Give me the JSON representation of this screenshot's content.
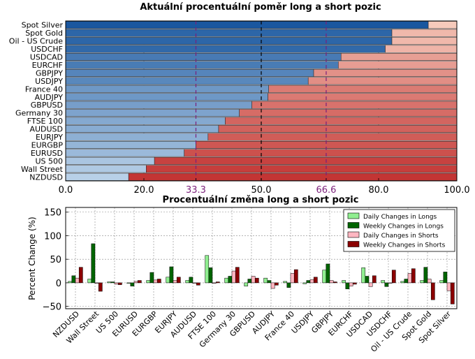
{
  "chart_data": [
    {
      "type": "bar",
      "orientation": "horizontal",
      "stacked": true,
      "title": "Aktuální procentuální poměr long a short pozic",
      "categories": [
        "Spot Silver",
        "Spot Gold",
        "Oil - US Crude",
        "USDCHF",
        "USDCAD",
        "EURCHF",
        "GBPJPY",
        "USDJPY",
        "France 40",
        "AUDJPY",
        "GBPUSD",
        "Germany 30",
        "FTSE 100",
        "AUDUSD",
        "EURJPY",
        "EURGBP",
        "EURUSD",
        "US 500",
        "Wall Street",
        "NZDUSD"
      ],
      "series": [
        {
          "values": [
            92.7,
            83.4,
            83.4,
            81.7,
            70.4,
            69.7,
            63.4,
            62.0,
            51.9,
            51.7,
            47.6,
            44.4,
            40.8,
            39.1,
            36.4,
            33.3,
            30.3,
            22.7,
            20.6,
            16.1
          ]
        },
        {
          "values": [
            7.3,
            16.6,
            16.6,
            18.3,
            29.6,
            30.3,
            36.6,
            38.0,
            48.1,
            48.3,
            52.4,
            55.6,
            59.2,
            60.9,
            63.6,
            66.7,
            69.7,
            77.3,
            79.4,
            83.9
          ]
        }
      ],
      "xlim": [
        0,
        100
      ],
      "xticks": [
        "0.0",
        "20.0",
        "33.3",
        "50.0",
        "66.6",
        "80.0",
        "100.0"
      ],
      "reference_lines": [
        33.3,
        50.0,
        66.6
      ],
      "grid": true,
      "colors": {
        "long_light": "#d9e9f7",
        "long_dark": "#0b4c98",
        "short_light": "#fbd8c8",
        "short_dark": "#b81618",
        "ref_purple": "#7b1f7b"
      }
    },
    {
      "type": "bar",
      "title": "Procentuální změna long a short pozic",
      "ylabel": "Percent Change (%)",
      "ylim": [
        -55,
        160
      ],
      "yticks": [
        "150",
        "100",
        "50",
        "0",
        "−50"
      ],
      "categories": [
        "NZDUSD",
        "Wall Street",
        "US 500",
        "EURUSD",
        "EURGBP",
        "EURJPY",
        "AUDUSD",
        "FTSE 100",
        "Germany 30",
        "GBPUSD",
        "AUDJPY",
        "France 40",
        "USDJPY",
        "GBPJPY",
        "EURCHF",
        "USDCAD",
        "USDCHF",
        "Oil - US Crude",
        "Spot Gold",
        "Spot Silver"
      ],
      "series": [
        {
          "name": "Daily Changes in Longs",
          "color": "#90ee90",
          "values": [
            3,
            8,
            2,
            0,
            5,
            12,
            5,
            58,
            10,
            -7,
            10,
            3,
            -2,
            27,
            5,
            32,
            5,
            3,
            5,
            5
          ]
        },
        {
          "name": "Weekly Changes in Longs",
          "color": "#006400",
          "values": [
            15,
            83,
            2,
            -7,
            22,
            34,
            12,
            32,
            14,
            8,
            5,
            -10,
            5,
            40,
            -13,
            14,
            -8,
            8,
            33,
            23
          ]
        },
        {
          "name": "Daily Changes in Shorts",
          "color": "#ffb6c1",
          "values": [
            10,
            0,
            -3,
            3,
            6,
            5,
            0,
            0,
            25,
            14,
            -12,
            20,
            7,
            5,
            -7,
            -8,
            0,
            20,
            8,
            -17
          ]
        },
        {
          "name": "Weekly Changes in Shorts",
          "color": "#8b0000",
          "values": [
            33,
            -18,
            -4,
            5,
            8,
            12,
            -5,
            2,
            33,
            10,
            -5,
            28,
            12,
            2,
            -3,
            15,
            27,
            30,
            -36,
            -45
          ]
        }
      ],
      "grid": true,
      "legend_position": "upper-right"
    }
  ]
}
